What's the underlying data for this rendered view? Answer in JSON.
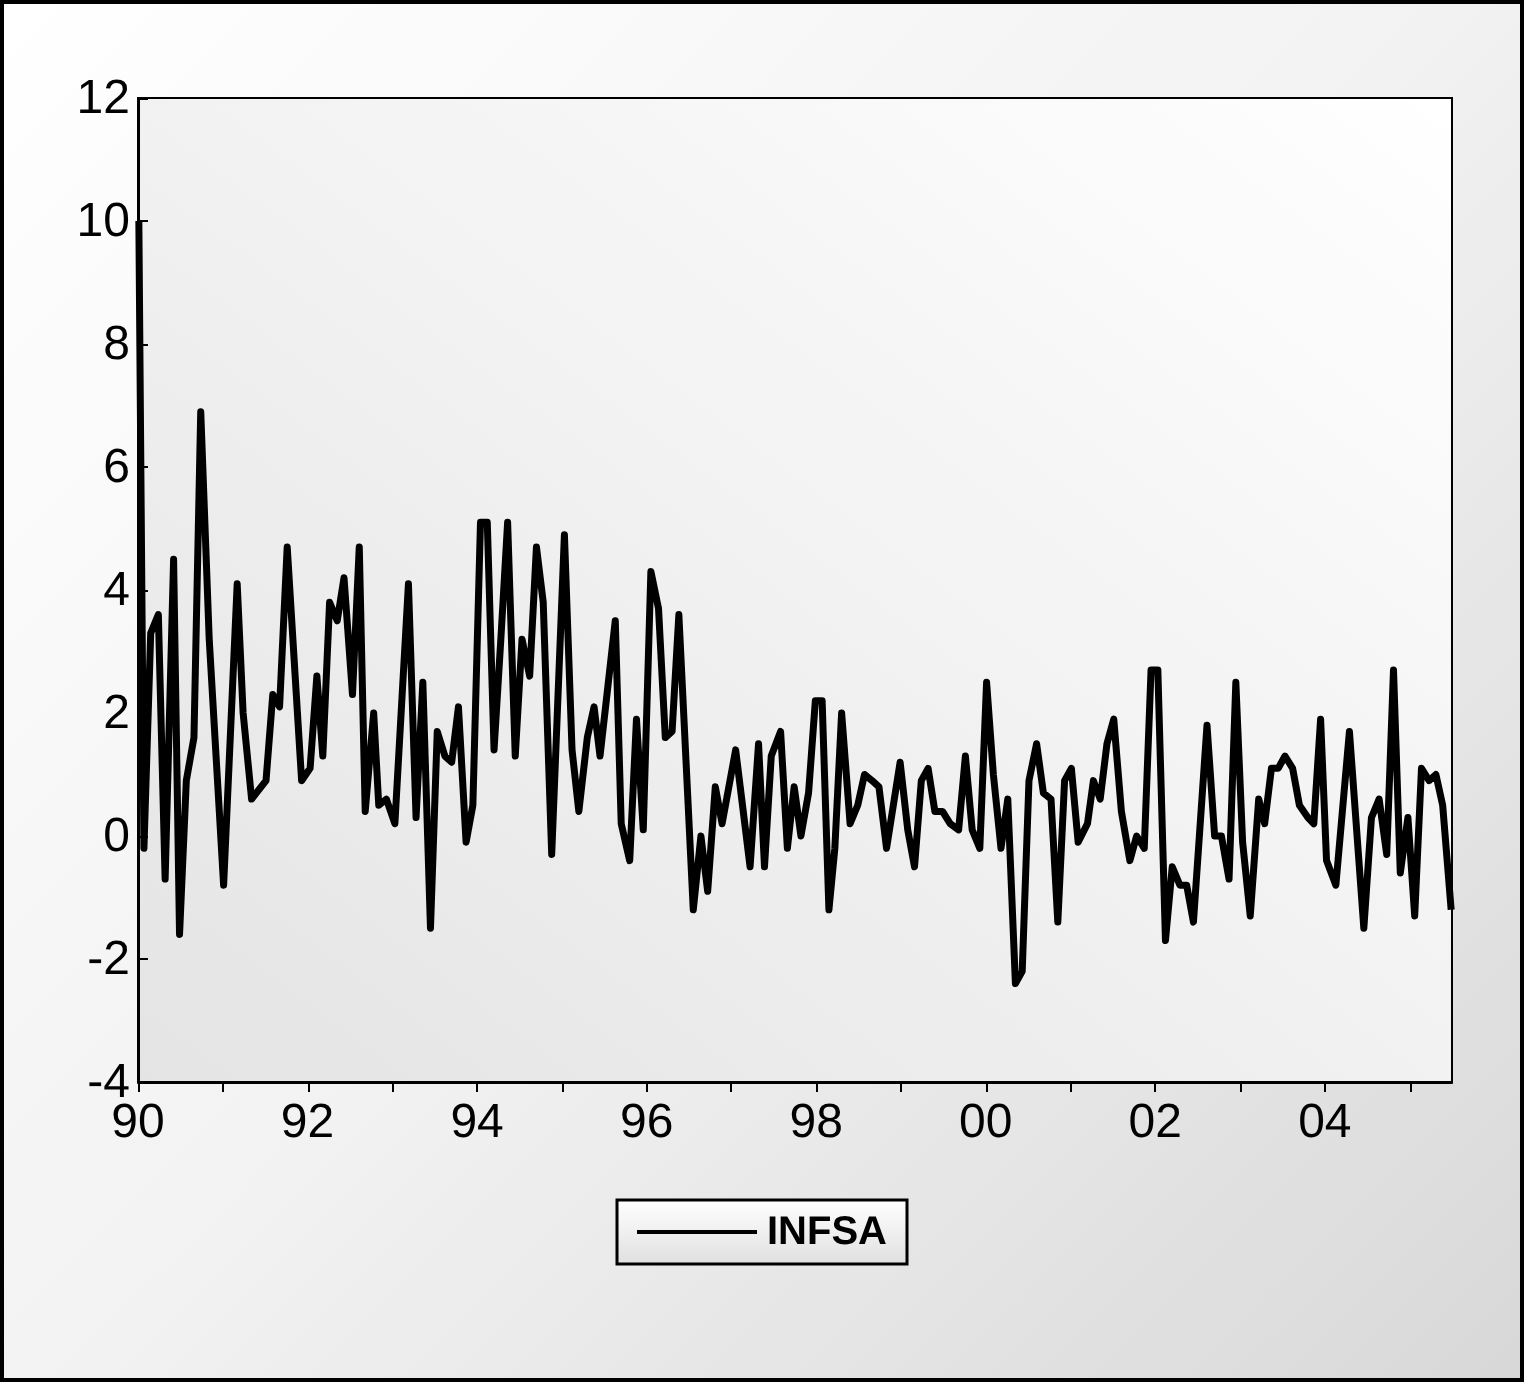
{
  "chart_data": {
    "type": "line",
    "xlim": [
      1990,
      2005.5
    ],
    "xticks": [
      {
        "value": 1990,
        "label": "90"
      },
      {
        "value": 1991,
        "label": null
      },
      {
        "value": 1992,
        "label": "92"
      },
      {
        "value": 1993,
        "label": null
      },
      {
        "value": 1994,
        "label": "94"
      },
      {
        "value": 1995,
        "label": null
      },
      {
        "value": 1996,
        "label": "96"
      },
      {
        "value": 1997,
        "label": null
      },
      {
        "value": 1998,
        "label": "98"
      },
      {
        "value": 1999,
        "label": null
      },
      {
        "value": 2000,
        "label": "00"
      },
      {
        "value": 2001,
        "label": null
      },
      {
        "value": 2002,
        "label": "02"
      },
      {
        "value": 2003,
        "label": null
      },
      {
        "value": 2004,
        "label": "04"
      },
      {
        "value": 2005,
        "label": null
      }
    ],
    "ylim": [
      -4,
      12
    ],
    "yticks": [
      -4,
      -2,
      0,
      2,
      4,
      6,
      8,
      10,
      12
    ],
    "grid": false,
    "legend": "bottom",
    "series": [
      {
        "name": "INFSA",
        "color": "#000000",
        "x": [
          1990.01,
          1990.07,
          1990.15,
          1990.24,
          1990.32,
          1990.42,
          1990.49,
          1990.57,
          1990.66,
          1990.74,
          1990.84,
          1991.01,
          1991.17,
          1991.24,
          1991.34,
          1991.51,
          1991.59,
          1991.67,
          1991.76,
          1991.93,
          1992.03,
          1992.11,
          1992.18,
          1992.26,
          1992.35,
          1992.43,
          1992.53,
          1992.61,
          1992.68,
          1992.78,
          1992.84,
          1992.93,
          1993.03,
          1993.19,
          1993.28,
          1993.36,
          1993.45,
          1993.53,
          1993.62,
          1993.7,
          1993.78,
          1993.87,
          1993.95,
          1994.04,
          1994.12,
          1994.2,
          1994.28,
          1994.36,
          1994.45,
          1994.53,
          1994.62,
          1994.7,
          1994.78,
          1994.88,
          1995.03,
          1995.12,
          1995.2,
          1995.3,
          1995.38,
          1995.45,
          1995.63,
          1995.7,
          1995.8,
          1995.88,
          1995.96,
          1996.05,
          1996.14,
          1996.22,
          1996.3,
          1996.38,
          1996.55,
          1996.64,
          1996.72,
          1996.81,
          1996.89,
          1997.05,
          1997.22,
          1997.32,
          1997.39,
          1997.47,
          1997.58,
          1997.66,
          1997.74,
          1997.82,
          1997.91,
          1997.99,
          1998.07,
          1998.15,
          1998.22,
          1998.3,
          1998.4,
          1998.49,
          1998.57,
          1998.66,
          1998.74,
          1998.83,
          1998.99,
          1999.08,
          1999.16,
          1999.24,
          1999.32,
          1999.4,
          1999.49,
          1999.58,
          1999.68,
          1999.76,
          1999.84,
          1999.93,
          2000.01,
          2000.09,
          2000.18,
          2000.26,
          2000.35,
          2000.43,
          2000.51,
          2000.6,
          2000.68,
          2000.77,
          2000.85,
          2000.93,
          2001.01,
          2001.09,
          2001.2,
          2001.27,
          2001.35,
          2001.43,
          2001.51,
          2001.6,
          2001.7,
          2001.78,
          2001.87,
          2001.95,
          2002.03,
          2002.12,
          2002.2,
          2002.29,
          2002.37,
          2002.45,
          2002.61,
          2002.7,
          2002.78,
          2002.87,
          2002.95,
          2003.03,
          2003.12,
          2003.22,
          2003.29,
          2003.37,
          2003.45,
          2003.53,
          2003.62,
          2003.7,
          2003.8,
          2003.87,
          2003.95,
          2004.02,
          2004.13,
          2004.29,
          2004.46,
          2004.55,
          2004.64,
          2004.73,
          2004.81,
          2004.89,
          2004.98,
          2005.06,
          2005.14,
          2005.23,
          2005.31,
          2005.39,
          2005.49
        ],
        "values": [
          10.0,
          -0.2,
          3.3,
          3.6,
          -0.7,
          4.5,
          -1.6,
          0.9,
          1.6,
          6.9,
          3.2,
          -0.8,
          4.1,
          2.0,
          0.6,
          0.9,
          2.3,
          2.1,
          4.7,
          0.9,
          1.1,
          2.6,
          1.3,
          3.8,
          3.5,
          4.2,
          2.3,
          4.7,
          0.4,
          2.0,
          0.5,
          0.6,
          0.2,
          4.1,
          0.3,
          2.5,
          -1.5,
          1.7,
          1.3,
          1.2,
          2.1,
          -0.1,
          0.5,
          5.1,
          5.1,
          1.4,
          3.2,
          5.1,
          1.3,
          3.2,
          2.6,
          4.7,
          3.8,
          -0.3,
          4.9,
          1.4,
          0.4,
          1.6,
          2.1,
          1.3,
          3.5,
          0.2,
          -0.4,
          1.9,
          0.1,
          4.3,
          3.7,
          1.6,
          1.7,
          3.6,
          -1.2,
          0.0,
          -0.9,
          0.8,
          0.2,
          1.4,
          -0.5,
          1.5,
          -0.5,
          1.3,
          1.7,
          -0.2,
          0.8,
          0.0,
          0.7,
          2.2,
          2.2,
          -1.2,
          -0.2,
          2.0,
          0.2,
          0.5,
          1.0,
          0.9,
          0.8,
          -0.2,
          1.2,
          0.1,
          -0.5,
          0.9,
          1.1,
          0.4,
          0.4,
          0.2,
          0.1,
          1.3,
          0.1,
          -0.2,
          2.5,
          1.0,
          -0.2,
          0.6,
          -2.4,
          -2.2,
          0.9,
          1.5,
          0.7,
          0.6,
          -1.4,
          0.9,
          1.1,
          -0.1,
          0.2,
          0.9,
          0.6,
          1.5,
          1.9,
          0.4,
          -0.4,
          0.0,
          -0.2,
          2.7,
          2.7,
          -1.7,
          -0.5,
          -0.8,
          -0.8,
          -1.4,
          1.8,
          0.0,
          0.0,
          -0.7,
          2.5,
          -0.1,
          -1.3,
          0.6,
          0.2,
          1.1,
          1.1,
          1.3,
          1.1,
          0.5,
          0.3,
          0.2,
          1.9,
          -0.4,
          -0.8,
          1.7,
          -1.5,
          0.3,
          0.6,
          -0.3,
          2.7,
          -0.6,
          0.3,
          -1.3,
          1.1,
          0.9,
          1.0,
          0.5,
          -1.2
        ]
      }
    ]
  }
}
